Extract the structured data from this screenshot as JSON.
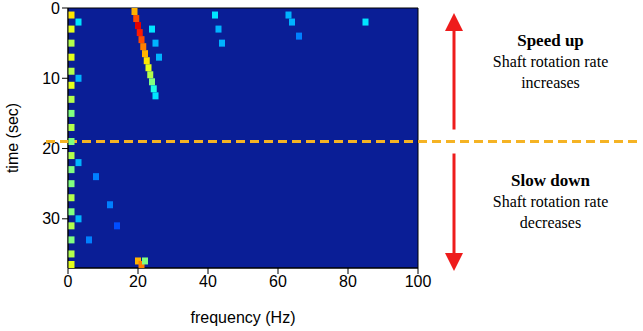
{
  "chart_data": {
    "type": "heatmap",
    "x_label": "frequency (Hz)",
    "y_label": "time (sec)",
    "xlim": [
      0,
      100
    ],
    "ylim": [
      0,
      37
    ],
    "xticks": [
      0,
      20,
      40,
      60,
      80,
      100
    ],
    "yticks": [
      0,
      10,
      20,
      30
    ],
    "color_range": [
      0,
      1
    ],
    "divider_time": 19,
    "annotations": [
      {
        "text": "Speed up",
        "subtext": "Shaft rotation rate increases",
        "direction": "up"
      },
      {
        "text": "Slow down",
        "subtext": "Shaft rotation rate decreases",
        "direction": "down"
      }
    ],
    "cells": [
      [
        1,
        1,
        0.65
      ],
      [
        1,
        3,
        0.6
      ],
      [
        1,
        5,
        0.55
      ],
      [
        1,
        7,
        0.6
      ],
      [
        1,
        9,
        0.55
      ],
      [
        1,
        11,
        0.6
      ],
      [
        1,
        13,
        0.55
      ],
      [
        1,
        15,
        0.5
      ],
      [
        1,
        17,
        0.55
      ],
      [
        1,
        19,
        0.5
      ],
      [
        1,
        21,
        0.55
      ],
      [
        1,
        23,
        0.5
      ],
      [
        1,
        25,
        0.5
      ],
      [
        1,
        27,
        0.55
      ],
      [
        1,
        29,
        0.5
      ],
      [
        1,
        31,
        0.55
      ],
      [
        1,
        33,
        0.5
      ],
      [
        1,
        35,
        0.55
      ],
      [
        1,
        36.5,
        0.6
      ],
      [
        3,
        2,
        0.35
      ],
      [
        3,
        10,
        0.3
      ],
      [
        3,
        22,
        0.3
      ],
      [
        3,
        30,
        0.3
      ],
      [
        19,
        0.5,
        0.7
      ],
      [
        19.5,
        1.5,
        0.8
      ],
      [
        20,
        2.5,
        0.9
      ],
      [
        20.5,
        3.5,
        0.85
      ],
      [
        21,
        4.5,
        0.8
      ],
      [
        21.5,
        5.5,
        0.75
      ],
      [
        22,
        6.5,
        0.7
      ],
      [
        22.5,
        7.5,
        0.65
      ],
      [
        23,
        8.5,
        0.6
      ],
      [
        23.5,
        9.5,
        0.55
      ],
      [
        24,
        10.5,
        0.5
      ],
      [
        24.5,
        11.5,
        0.4
      ],
      [
        25,
        12.5,
        0.35
      ],
      [
        24,
        3,
        0.35
      ],
      [
        25,
        5,
        0.3
      ],
      [
        26,
        7,
        0.3
      ],
      [
        42,
        1,
        0.35
      ],
      [
        43,
        3,
        0.3
      ],
      [
        44,
        5,
        0.3
      ],
      [
        63,
        1,
        0.3
      ],
      [
        64,
        2,
        0.3
      ],
      [
        66,
        4,
        0.25
      ],
      [
        85,
        2,
        0.35
      ],
      [
        8,
        24,
        0.25
      ],
      [
        12,
        28,
        0.25
      ],
      [
        6,
        33,
        0.25
      ],
      [
        14,
        31,
        0.2
      ],
      [
        20,
        36,
        0.7
      ],
      [
        21,
        36.5,
        0.75
      ],
      [
        22,
        36,
        0.5
      ]
    ]
  }
}
